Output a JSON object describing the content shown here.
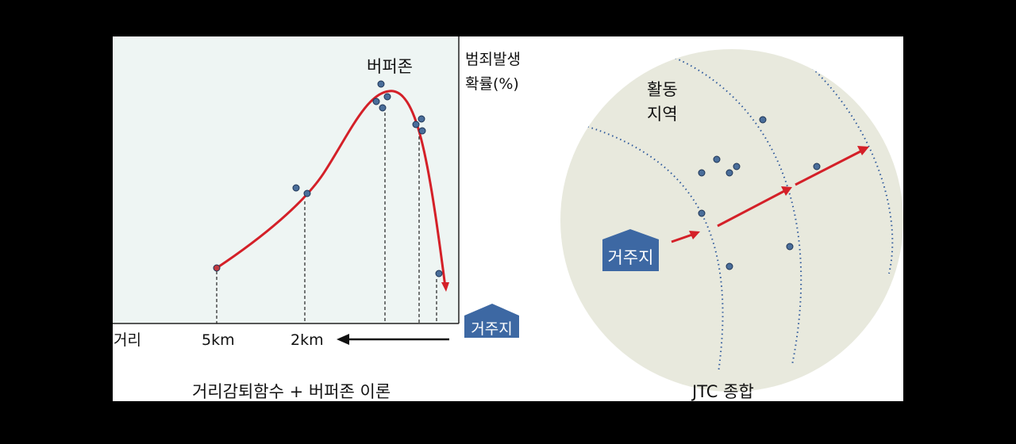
{
  "left_panel": {
    "buffer_zone_label": "버퍼존",
    "y_axis_label_line1": "범죄발생",
    "y_axis_label_line2": "확률(%)",
    "x_axis_label": "거리",
    "tick_5km": "5km",
    "tick_2km": "2km",
    "residence_label": "거주지",
    "caption": "거리감퇴함수 + 버퍼존 이론"
  },
  "right_panel": {
    "activity_area_line1": "활동",
    "activity_area_line2": "지역",
    "residence_label": "거주지",
    "caption": "JTC 종합"
  },
  "colors": {
    "curve": "#d42028",
    "point": "#4a6e9a",
    "house": "#3d68a3",
    "circle_fill": "#e8e9dd",
    "plot_bg": "#eef5f3",
    "dotted": "#2f5a9c"
  }
}
